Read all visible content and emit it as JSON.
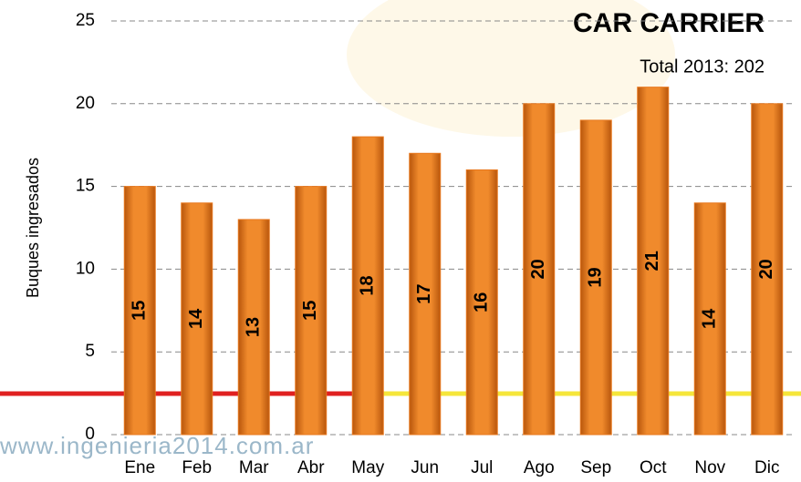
{
  "chart_data": {
    "type": "bar",
    "title": "CAR CARRIER",
    "subtitle": "Total 2013: 202",
    "y_label": "Buques ingresados",
    "watermark": "www.ingenieria2014.com.ar",
    "categories": [
      "Ene",
      "Feb",
      "Mar",
      "Abr",
      "May",
      "Jun",
      "Jul",
      "Ago",
      "Sep",
      "Oct",
      "Nov",
      "Dic"
    ],
    "values": [
      15,
      14,
      13,
      15,
      18,
      17,
      16,
      20,
      19,
      21,
      14,
      20
    ],
    "color": "#e8781e",
    "ylim": [
      0,
      25
    ],
    "yticks": [
      0,
      5,
      10,
      15,
      20,
      25
    ],
    "grid": true
  }
}
